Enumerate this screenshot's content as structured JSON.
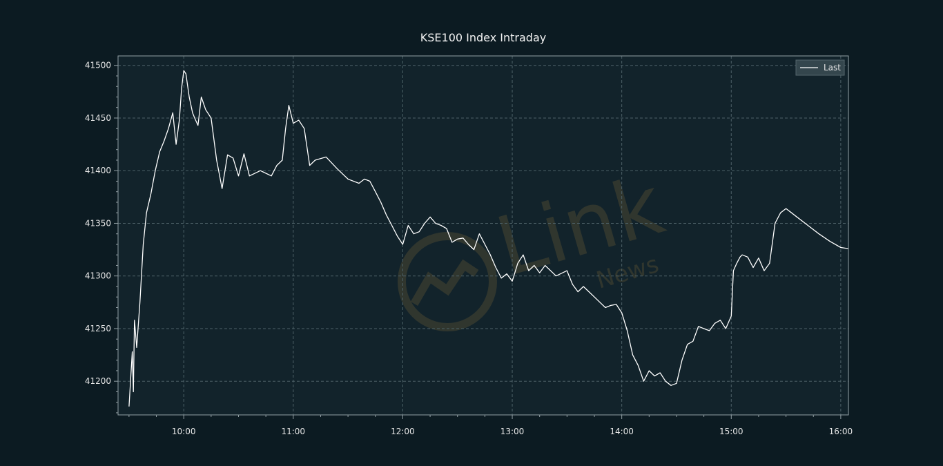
{
  "colors": {
    "background": "#0c1b22",
    "plot_background": "#12232b",
    "grid": "#4d6168",
    "axis": "#93a0a5",
    "line": "#ffffff",
    "text": "#e6e6e6",
    "legend_background": "#34464d",
    "watermark": "#4a4632"
  },
  "watermark": {
    "primary": "Link",
    "secondary": "News"
  },
  "chart_data": {
    "type": "line",
    "title": "KSE100 Index Intraday",
    "xlabel": "",
    "ylabel": "",
    "grid": true,
    "legend_position": "top-right",
    "x_unit": "time of day (HH:MM, decimal hours)",
    "xlim": [
      9.4,
      16.07
    ],
    "ylim": [
      41168,
      41509
    ],
    "x_ticks": [
      10,
      11,
      12,
      13,
      14,
      15,
      16
    ],
    "x_tick_labels": [
      "10:00",
      "11:00",
      "12:00",
      "13:00",
      "14:00",
      "15:00",
      "16:00"
    ],
    "y_ticks": [
      41200,
      41250,
      41300,
      41350,
      41400,
      41450,
      41500
    ],
    "y_tick_labels": [
      "41200",
      "41250",
      "41300",
      "41350",
      "41400",
      "41450",
      "41500"
    ],
    "series": [
      {
        "name": "Last",
        "x": [
          9.5,
          9.53,
          9.54,
          9.55,
          9.57,
          9.6,
          9.63,
          9.66,
          9.7,
          9.74,
          9.78,
          9.82,
          9.86,
          9.9,
          9.93,
          9.96,
          9.98,
          10.0,
          10.02,
          10.05,
          10.08,
          10.1,
          10.13,
          10.16,
          10.2,
          10.25,
          10.3,
          10.35,
          10.4,
          10.45,
          10.5,
          10.55,
          10.6,
          10.7,
          10.8,
          10.85,
          10.9,
          10.93,
          10.96,
          11.0,
          11.05,
          11.1,
          11.15,
          11.2,
          11.3,
          11.4,
          11.5,
          11.6,
          11.65,
          11.7,
          11.75,
          11.8,
          11.85,
          11.9,
          11.95,
          12.0,
          12.05,
          12.1,
          12.15,
          12.2,
          12.25,
          12.3,
          12.35,
          12.4,
          12.45,
          12.5,
          12.55,
          12.6,
          12.65,
          12.7,
          12.75,
          12.8,
          12.85,
          12.9,
          12.95,
          13.0,
          13.05,
          13.1,
          13.15,
          13.2,
          13.25,
          13.3,
          13.4,
          13.5,
          13.55,
          13.6,
          13.65,
          13.7,
          13.75,
          13.8,
          13.85,
          13.9,
          13.95,
          14.0,
          14.05,
          14.1,
          14.15,
          14.2,
          14.25,
          14.3,
          14.35,
          14.4,
          14.45,
          14.5,
          14.55,
          14.6,
          14.65,
          14.7,
          14.75,
          14.8,
          14.85,
          14.9,
          14.95,
          15.0,
          15.02,
          15.05,
          15.08,
          15.1,
          15.15,
          15.2,
          15.25,
          15.3,
          15.35,
          15.4,
          15.45,
          15.5,
          15.6,
          15.7,
          15.8,
          15.9,
          16.0,
          16.07
        ],
        "values": [
          41176,
          41228,
          41190,
          41258,
          41232,
          41275,
          41330,
          41360,
          41378,
          41400,
          41418,
          41428,
          41440,
          41455,
          41425,
          41448,
          41478,
          41495,
          41492,
          41470,
          41455,
          41450,
          41443,
          41470,
          41458,
          41450,
          41410,
          41383,
          41415,
          41412,
          41395,
          41416,
          41395,
          41400,
          41395,
          41405,
          41410,
          41440,
          41462,
          41445,
          41448,
          41440,
          41405,
          41410,
          41413,
          41402,
          41392,
          41388,
          41392,
          41390,
          41380,
          41370,
          41358,
          41348,
          41338,
          41330,
          41348,
          41340,
          41342,
          41350,
          41356,
          41350,
          41348,
          41345,
          41332,
          41335,
          41336,
          41330,
          41325,
          41340,
          41330,
          41320,
          41308,
          41298,
          41302,
          41295,
          41312,
          41320,
          41305,
          41310,
          41303,
          41310,
          41300,
          41305,
          41292,
          41285,
          41290,
          41285,
          41280,
          41275,
          41270,
          41272,
          41273,
          41265,
          41248,
          41225,
          41215,
          41200,
          41210,
          41205,
          41208,
          41200,
          41196,
          41198,
          41220,
          41235,
          41238,
          41252,
          41250,
          41248,
          41255,
          41258,
          41250,
          41262,
          41305,
          41312,
          41318,
          41320,
          41318,
          41308,
          41317,
          41305,
          41312,
          41350,
          41360,
          41364,
          41356,
          41348,
          41340,
          41333,
          41327,
          41326
        ]
      }
    ]
  }
}
